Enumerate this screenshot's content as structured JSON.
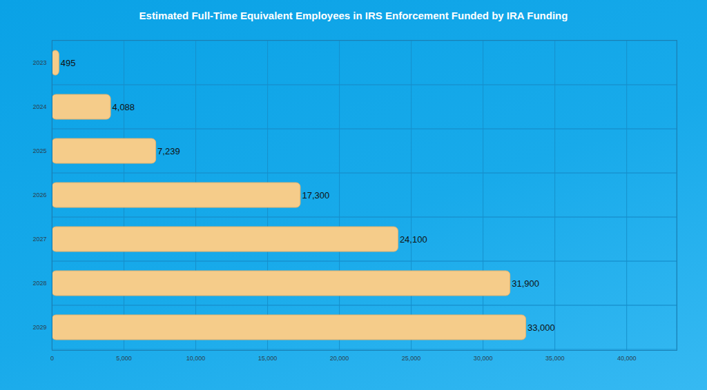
{
  "chart_data": {
    "type": "bar",
    "orientation": "horizontal",
    "title": "Estimated Full-Time Equivalent Employees in IRS Enforcement Funded by IRA Funding",
    "categories": [
      "2023",
      "2024",
      "2025",
      "2026",
      "2027",
      "2028",
      "2029"
    ],
    "values": [
      495,
      4088,
      7239,
      17300,
      24100,
      31900,
      33000
    ],
    "value_labels": [
      "495",
      "4,088",
      "7,239",
      "17,300",
      "24,100",
      "31,900",
      "33,000"
    ],
    "color": "#f5cc8a",
    "xlim": [
      0,
      43500
    ],
    "xticks": [
      0,
      {
        "value": 5000,
        "label": "5,000"
      },
      {
        "value": 10000,
        "label": "10,000"
      },
      {
        "value": 15000,
        "label": "15,000"
      },
      {
        "value": 20000,
        "label": "20,000"
      },
      {
        "value": 25000,
        "label": "25,000"
      },
      {
        "value": 30000,
        "label": "30,000"
      },
      {
        "value": 35000,
        "label": "35,000"
      },
      {
        "value": 40000,
        "label": "40,000"
      }
    ],
    "grid": true,
    "data_labels": true
  }
}
